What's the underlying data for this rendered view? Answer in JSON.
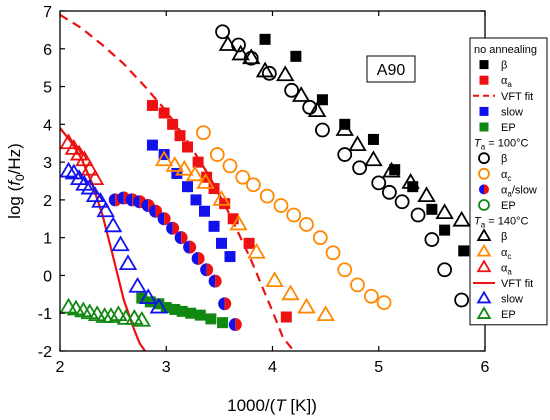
{
  "chart_data": {
    "type": "scatter",
    "xlabel_parts": [
      "1000/(",
      "T",
      " [K])"
    ],
    "ylabel_parts": [
      "log (",
      "f",
      "0",
      "/Hz)"
    ],
    "xlim": [
      2,
      6
    ],
    "ylim": [
      -2,
      7
    ],
    "xticks": [
      2,
      3,
      4,
      5,
      6
    ],
    "yticks": [
      -2,
      -1,
      0,
      1,
      2,
      3,
      4,
      5,
      6,
      7
    ],
    "annotation": "A90",
    "legend_groups": [
      "no annealing",
      "Ta = 100°C",
      "Ta = 140°C"
    ],
    "series": [
      {
        "name": "β",
        "group": "no annealing",
        "marker": "square",
        "fill": "solid",
        "color": "#000000",
        "x": [
          3.93,
          4.22,
          4.47,
          4.68,
          4.95,
          5.15,
          5.32,
          5.5,
          5.62,
          5.8
        ],
        "y": [
          6.25,
          5.8,
          4.65,
          4.0,
          3.6,
          2.8,
          2.35,
          1.75,
          1.2,
          0.65
        ]
      },
      {
        "name": "αa",
        "group": "no annealing",
        "marker": "square",
        "fill": "solid",
        "color": "#ee1111",
        "x": [
          2.87,
          2.98,
          3.06,
          3.13,
          3.2,
          3.3,
          3.38,
          3.45,
          3.55,
          3.63,
          3.78,
          4.13
        ],
        "y": [
          4.5,
          4.3,
          4.0,
          3.7,
          3.4,
          3.0,
          2.6,
          2.3,
          1.9,
          1.5,
          0.85,
          -1.1
        ]
      },
      {
        "name": "VFT fit",
        "group": "no annealing",
        "type": "line",
        "style": "dashed",
        "color": "#ee1111",
        "x": [
          2.0,
          2.2,
          2.4,
          2.6,
          2.8,
          3.0,
          3.2,
          3.4,
          3.6,
          3.8,
          4.0,
          4.1,
          4.2
        ],
        "y": [
          6.9,
          6.55,
          6.1,
          5.6,
          5.0,
          4.35,
          3.55,
          2.65,
          1.6,
          0.4,
          -0.95,
          -1.65,
          -2.0
        ]
      },
      {
        "name": "slow",
        "group": "no annealing",
        "marker": "square",
        "fill": "solid",
        "color": "#1111ee",
        "x": [
          2.87,
          2.98,
          3.1,
          3.2,
          3.28,
          3.36,
          3.45,
          3.52,
          3.6
        ],
        "y": [
          3.45,
          3.2,
          2.7,
          2.35,
          2.0,
          1.7,
          1.3,
          0.85,
          0.5
        ]
      },
      {
        "name": "EP",
        "group": "no annealing",
        "marker": "square",
        "fill": "solid",
        "color": "#118811",
        "x": [
          2.77,
          2.85,
          2.93,
          3.0,
          3.08,
          3.15,
          3.23,
          3.32,
          3.42,
          3.53
        ],
        "y": [
          -0.6,
          -0.7,
          -0.75,
          -0.85,
          -0.9,
          -0.95,
          -1.0,
          -1.05,
          -1.15,
          -1.25
        ]
      },
      {
        "name": "β",
        "group": "Ta = 100°C",
        "marker": "circle",
        "fill": "open",
        "color": "#000000",
        "x": [
          3.53,
          3.68,
          3.8,
          3.97,
          4.18,
          4.35,
          4.47,
          4.68,
          4.82,
          5.0,
          5.1,
          5.22,
          5.37,
          5.5,
          5.62,
          5.78
        ],
        "y": [
          6.45,
          6.1,
          5.75,
          5.35,
          4.9,
          4.45,
          3.85,
          3.2,
          2.85,
          2.45,
          2.2,
          1.95,
          1.6,
          0.95,
          0.15,
          -0.65
        ]
      },
      {
        "name": "αc",
        "group": "Ta = 100°C",
        "marker": "circle",
        "fill": "open",
        "color": "#ff8800",
        "x": [
          3.35,
          3.48,
          3.6,
          3.72,
          3.82,
          3.95,
          4.08,
          4.2,
          4.32,
          4.45,
          4.57,
          4.68,
          4.8,
          4.93,
          5.05
        ],
        "y": [
          3.78,
          3.2,
          2.9,
          2.6,
          2.4,
          2.1,
          1.85,
          1.6,
          1.35,
          1.0,
          0.6,
          0.15,
          -0.25,
          -0.55,
          -0.72
        ]
      },
      {
        "name": "αa/slow",
        "group": "Ta = 100°C",
        "marker": "circle",
        "fill": "half",
        "color": "#1111ee",
        "color2": "#ee1111",
        "x": [
          2.52,
          2.6,
          2.68,
          2.75,
          2.83,
          2.9,
          2.98,
          3.06,
          3.14,
          3.22,
          3.3,
          3.38,
          3.46,
          3.55,
          3.65
        ],
        "y": [
          2.0,
          2.05,
          2.0,
          1.95,
          1.85,
          1.7,
          1.5,
          1.25,
          1.0,
          0.75,
          0.45,
          0.15,
          -0.15,
          -0.75,
          -1.3
        ]
      },
      {
        "name": "EP",
        "group": "Ta = 100°C",
        "marker": "circle",
        "fill": "open",
        "color": "#118811",
        "x": [],
        "y": []
      },
      {
        "name": "β",
        "group": "Ta = 140°C",
        "marker": "triangle",
        "fill": "open",
        "color": "#000000",
        "x": [
          3.58,
          3.7,
          3.8,
          3.93,
          4.12,
          4.27,
          4.42,
          4.68,
          4.8,
          4.95,
          5.12,
          5.3,
          5.45,
          5.62,
          5.78
        ],
        "y": [
          6.1,
          5.85,
          5.75,
          5.4,
          5.3,
          4.75,
          4.35,
          3.85,
          3.45,
          3.05,
          2.75,
          2.45,
          2.1,
          1.65,
          1.45
        ]
      },
      {
        "name": "αc",
        "group": "Ta = 140°C",
        "marker": "triangle",
        "fill": "open",
        "color": "#ff8800",
        "x": [
          2.98,
          3.08,
          3.17,
          3.27,
          3.37,
          3.52,
          3.68,
          3.85,
          4.02,
          4.17,
          4.32,
          4.5
        ],
        "y": [
          3.05,
          2.9,
          2.8,
          2.65,
          2.45,
          2.0,
          1.35,
          0.6,
          -0.15,
          -0.5,
          -0.85,
          -1.05
        ]
      },
      {
        "name": "αa",
        "group": "Ta = 140°C",
        "marker": "triangle",
        "fill": "open",
        "color": "#ee1111",
        "x": [
          2.08,
          2.13,
          2.18,
          2.23,
          2.28,
          2.33
        ],
        "y": [
          3.5,
          3.35,
          3.2,
          3.05,
          2.8,
          2.55
        ]
      },
      {
        "name": "VFT fit",
        "group": "Ta = 140°C",
        "type": "line",
        "style": "solid",
        "color": "#ee1111",
        "x": [
          2.0,
          2.1,
          2.2,
          2.3,
          2.4,
          2.5,
          2.6,
          2.7,
          2.75,
          2.8
        ],
        "y": [
          3.9,
          3.55,
          3.1,
          2.45,
          1.6,
          0.5,
          -0.65,
          -1.45,
          -1.8,
          -2.0
        ]
      },
      {
        "name": "slow",
        "group": "Ta = 140°C",
        "marker": "triangle",
        "fill": "open",
        "color": "#1111ee",
        "x": [
          2.08,
          2.13,
          2.18,
          2.23,
          2.28,
          2.33,
          2.38,
          2.43,
          2.5,
          2.57,
          2.64,
          2.73,
          2.83,
          2.93
        ],
        "y": [
          2.75,
          2.7,
          2.55,
          2.4,
          2.3,
          2.1,
          1.95,
          1.7,
          1.3,
          0.8,
          0.3,
          -0.3,
          -0.6,
          -0.85
        ]
      },
      {
        "name": "EP",
        "group": "Ta = 140°C",
        "marker": "triangle",
        "fill": "open",
        "color": "#118811",
        "x": [
          2.08,
          2.15,
          2.22,
          2.28,
          2.35,
          2.42,
          2.48,
          2.55,
          2.62,
          2.7,
          2.77
        ],
        "y": [
          -0.85,
          -0.9,
          -0.95,
          -1.0,
          -1.05,
          -1.1,
          -1.1,
          -1.05,
          -1.15,
          -1.15,
          -1.2
        ]
      }
    ],
    "legend_entries": [
      {
        "kind": "head",
        "parts": [
          "no annealing"
        ]
      },
      {
        "kind": "item",
        "series": 0,
        "parts": [
          "β"
        ]
      },
      {
        "kind": "item",
        "series": 1,
        "parts": [
          "α",
          "a"
        ]
      },
      {
        "kind": "item",
        "series": 2,
        "parts": [
          "VFT fit"
        ]
      },
      {
        "kind": "item",
        "series": 3,
        "parts": [
          "slow"
        ]
      },
      {
        "kind": "item",
        "series": 4,
        "parts": [
          "EP"
        ]
      },
      {
        "kind": "head",
        "parts": [
          "T",
          "a",
          " = 100°C"
        ]
      },
      {
        "kind": "item",
        "series": 5,
        "parts": [
          "β"
        ]
      },
      {
        "kind": "item",
        "series": 6,
        "parts": [
          "α",
          "c"
        ]
      },
      {
        "kind": "item",
        "series": 7,
        "parts": [
          "α",
          "a",
          "/slow"
        ]
      },
      {
        "kind": "item",
        "series": 8,
        "parts": [
          "EP"
        ]
      },
      {
        "kind": "head",
        "parts": [
          "T",
          "a",
          " = 140°C"
        ]
      },
      {
        "kind": "item",
        "series": 9,
        "parts": [
          "β"
        ]
      },
      {
        "kind": "item",
        "series": 10,
        "parts": [
          "α",
          "c"
        ]
      },
      {
        "kind": "item",
        "series": 11,
        "parts": [
          "α",
          "a"
        ]
      },
      {
        "kind": "item",
        "series": 12,
        "parts": [
          "VFT fit"
        ]
      },
      {
        "kind": "item",
        "series": 13,
        "parts": [
          "slow"
        ]
      },
      {
        "kind": "item",
        "series": 14,
        "parts": [
          "EP"
        ]
      }
    ]
  }
}
